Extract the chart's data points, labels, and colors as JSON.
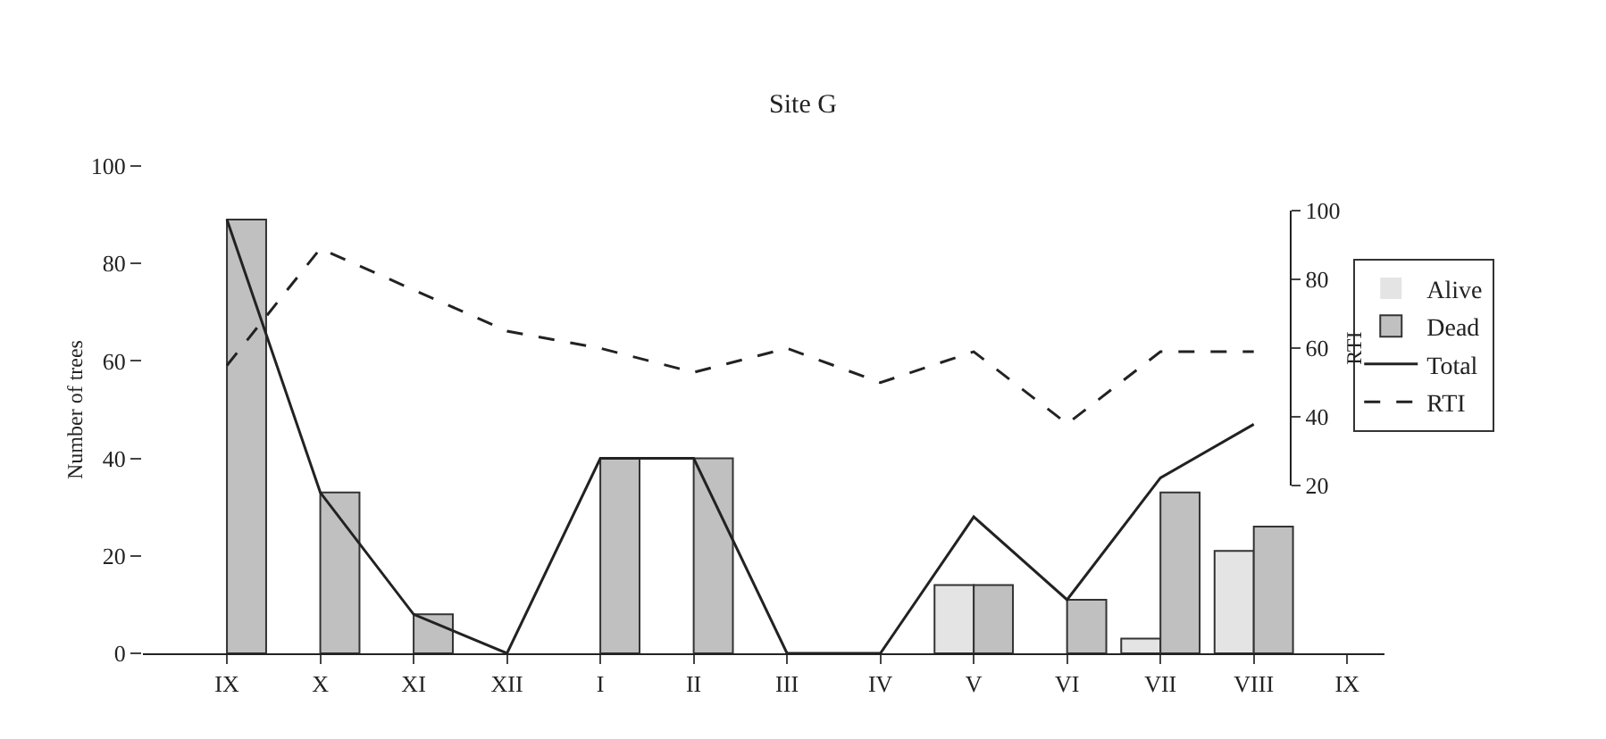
{
  "chart_data": {
    "type": "bar",
    "title": "Site G",
    "ylabel": "Number of trees",
    "y2label": "RTI",
    "categories": [
      "IX",
      "X",
      "XI",
      "XII",
      "I",
      "II",
      "III",
      "IV",
      "V",
      "VI",
      "VII",
      "VIII",
      "IX"
    ],
    "series": [
      {
        "name": "Alive",
        "color": "#e4e4e4",
        "values": [
          0,
          0,
          0,
          0,
          0,
          0,
          0,
          0,
          14,
          0,
          3,
          21,
          null
        ]
      },
      {
        "name": "Dead",
        "color": "#c0c0c0",
        "values": [
          89,
          33,
          8,
          0,
          40,
          40,
          0,
          0,
          14,
          11,
          33,
          26,
          null
        ]
      },
      {
        "name": "Total",
        "type": "line",
        "color": "#222222",
        "line_style": "solid",
        "values": [
          89,
          33,
          8,
          0,
          40,
          40,
          0,
          0,
          28,
          11,
          36,
          47,
          null
        ]
      },
      {
        "name": "RTI",
        "type": "line",
        "axis": "y2",
        "color": "#222222",
        "line_style": "dashed",
        "values": [
          55,
          89,
          77,
          65,
          60,
          53,
          60,
          50,
          59,
          38,
          59,
          59,
          null
        ]
      }
    ],
    "ylim": [
      0,
      100
    ],
    "yticks": [
      0,
      20,
      40,
      60,
      80,
      100
    ],
    "y2lim": [
      20,
      100
    ],
    "y2ticks": [
      20,
      40,
      60,
      80,
      100
    ],
    "grid": false,
    "legend": "top right",
    "marker": "none"
  }
}
